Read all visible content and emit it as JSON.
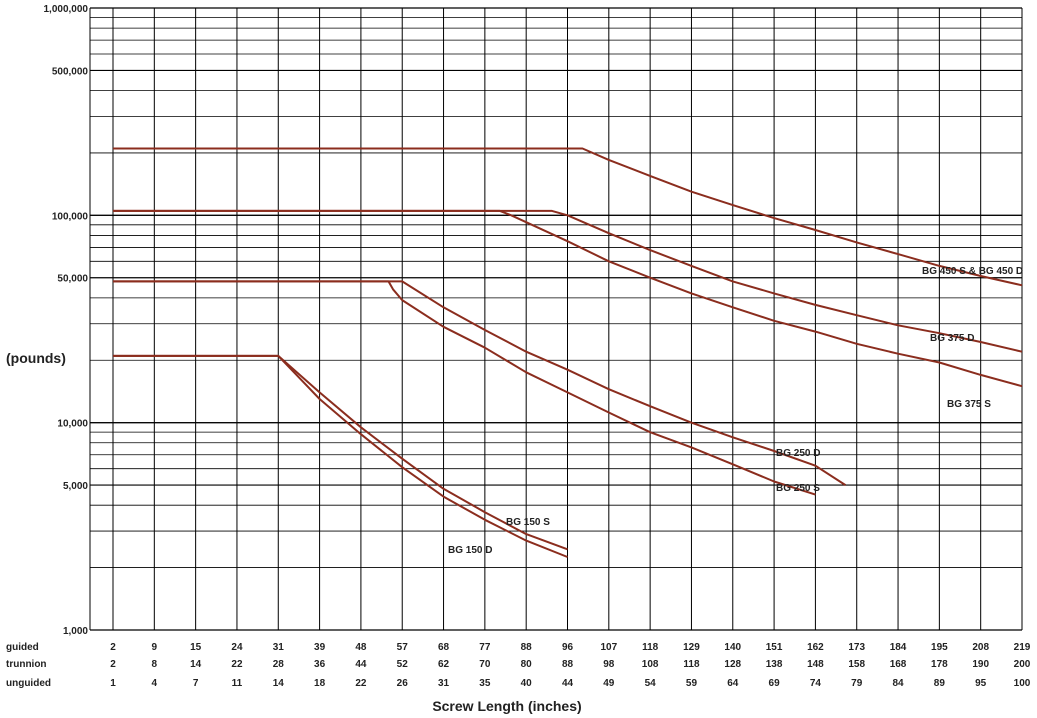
{
  "chart_data": {
    "type": "line",
    "title": "",
    "ylabel": "(pounds)",
    "xlabel": "Screw Length (inches)",
    "y_scale": "log",
    "ylim": [
      1000,
      1000000
    ],
    "y_tick_labels": [
      "1,000",
      "5,000",
      "10,000",
      "50,000",
      "100,000",
      "500,000",
      "1,000,000"
    ],
    "y_tick_values": [
      1000,
      5000,
      10000,
      50000,
      100000,
      500000,
      1000000
    ],
    "grid": true,
    "x_axis_rows": [
      {
        "name": "guided",
        "values": [
          "2",
          "9",
          "15",
          "24",
          "31",
          "39",
          "48",
          "57",
          "68",
          "77",
          "88",
          "96",
          "107",
          "118",
          "129",
          "140",
          "151",
          "162",
          "173",
          "184",
          "195",
          "208",
          "219"
        ]
      },
      {
        "name": "trunnion",
        "values": [
          "2",
          "8",
          "14",
          "22",
          "28",
          "36",
          "44",
          "52",
          "62",
          "70",
          "80",
          "88",
          "98",
          "108",
          "118",
          "128",
          "138",
          "148",
          "158",
          "168",
          "178",
          "190",
          "200"
        ]
      },
      {
        "name": "unguided",
        "values": [
          "1",
          "4",
          "7",
          "11",
          "14",
          "18",
          "22",
          "26",
          "31",
          "35",
          "40",
          "44",
          "49",
          "54",
          "59",
          "64",
          "69",
          "74",
          "79",
          "84",
          "89",
          "95",
          "100"
        ]
      }
    ],
    "x_reference_row": "guided",
    "series": [
      {
        "name": "BG 450 S & BG 450 D",
        "x": [
          2,
          100,
          107,
          118,
          129,
          140,
          151,
          162,
          173,
          184,
          195,
          208,
          219
        ],
        "y": [
          210000,
          210000,
          185000,
          155000,
          130000,
          112000,
          97000,
          85000,
          74000,
          65000,
          57000,
          51000,
          46000
        ]
      },
      {
        "name": "BG 375 D",
        "x": [
          2,
          93,
          96,
          107,
          118,
          129,
          140,
          151,
          162,
          173,
          184,
          195,
          208,
          219
        ],
        "y": [
          105000,
          105000,
          100000,
          82000,
          68000,
          57000,
          48000,
          42000,
          37000,
          33000,
          29500,
          27000,
          24500,
          22000
        ]
      },
      {
        "name": "BG 375 S",
        "x": [
          2,
          81,
          84,
          96,
          107,
          118,
          129,
          140,
          151,
          162,
          173,
          184,
          195,
          208,
          219
        ],
        "y": [
          105000,
          105000,
          100000,
          75000,
          60000,
          50000,
          42000,
          36000,
          31000,
          27500,
          24000,
          21500,
          19500,
          17000,
          15000
        ]
      },
      {
        "name": "BG 250 D",
        "x": [
          2,
          57,
          68,
          77,
          88,
          96,
          107,
          118,
          129,
          140,
          151,
          162,
          170
        ],
        "y": [
          48000,
          48000,
          36000,
          28000,
          22000,
          18000,
          14500,
          12000,
          10000,
          8500,
          7300,
          6200,
          5000
        ]
      },
      {
        "name": "BG 250 S",
        "x": [
          2,
          54,
          55,
          57,
          68,
          77,
          88,
          96,
          107,
          118,
          129,
          140,
          151,
          162
        ],
        "y": [
          48000,
          48000,
          44000,
          39000,
          29000,
          23000,
          17500,
          14000,
          11200,
          9000,
          7600,
          6300,
          5200,
          4500
        ]
      },
      {
        "name": "BG 150 S",
        "x": [
          2,
          31,
          39,
          48,
          57,
          68,
          77,
          88,
          96
        ],
        "y": [
          21000,
          21000,
          14000,
          9500,
          6700,
          4800,
          3700,
          2900,
          2450
        ]
      },
      {
        "name": "BG 150 D",
        "x": [
          2,
          31,
          39,
          48,
          57,
          68,
          77,
          88,
          96
        ],
        "y": [
          21000,
          21000,
          13000,
          8800,
          6100,
          4400,
          3400,
          2700,
          2250
        ]
      }
    ],
    "line_color": "#8b2d1e",
    "grid_color": "#000000"
  }
}
